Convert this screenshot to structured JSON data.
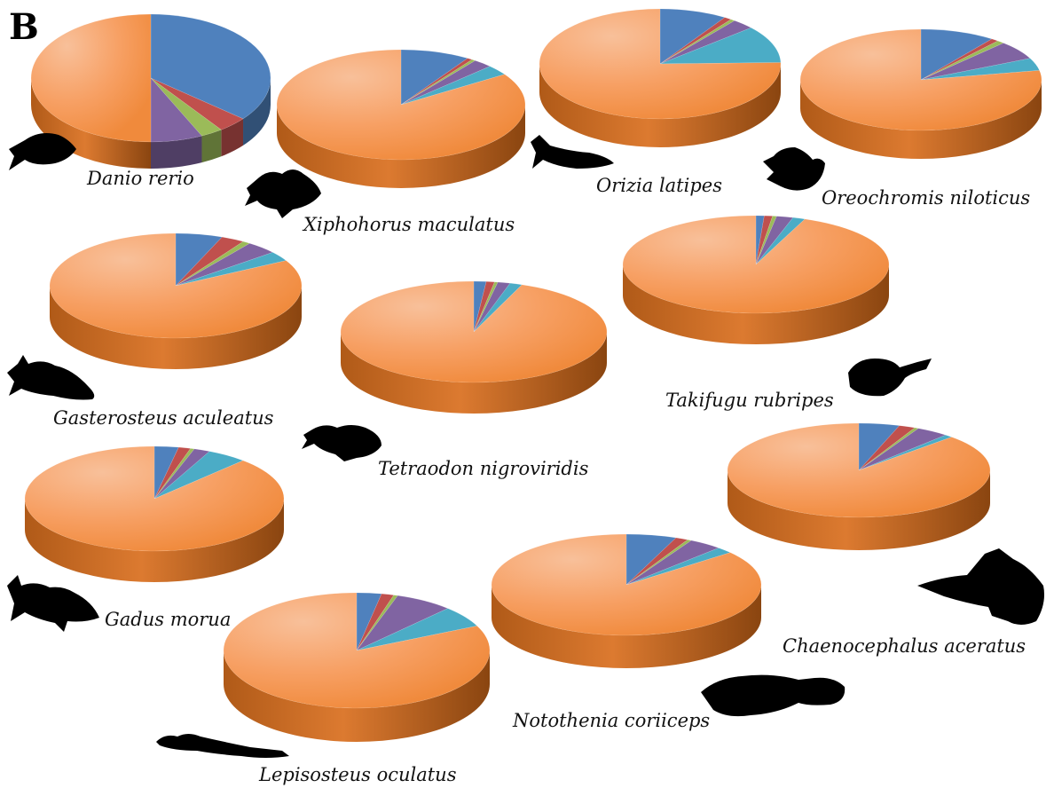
{
  "panel_label": "B",
  "colors": {
    "blue": "#4f81bd",
    "red": "#c0504d",
    "green": "#9bbb59",
    "purple": "#8064a2",
    "cyan": "#4bacc6",
    "orange": "#f79646"
  },
  "chart_data": [
    {
      "type": "pie",
      "species": "Danio rerio",
      "values": [
        {
          "color": "blue",
          "value": 36
        },
        {
          "color": "red",
          "value": 4
        },
        {
          "color": "green",
          "value": 3
        },
        {
          "color": "purple",
          "value": 7
        },
        {
          "color": "cyan",
          "value": 0
        },
        {
          "color": "orange",
          "value": 50
        }
      ]
    },
    {
      "type": "pie",
      "species": "Xiphohorus maculatus",
      "values": [
        {
          "color": "blue",
          "value": 9
        },
        {
          "color": "red",
          "value": 0.7
        },
        {
          "color": "green",
          "value": 0.5
        },
        {
          "color": "purple",
          "value": 2.5
        },
        {
          "color": "cyan",
          "value": 3
        },
        {
          "color": "orange",
          "value": 84.3
        }
      ]
    },
    {
      "type": "pie",
      "species": "Orizia latipes",
      "values": [
        {
          "color": "blue",
          "value": 9
        },
        {
          "color": "red",
          "value": 1
        },
        {
          "color": "green",
          "value": 0.6
        },
        {
          "color": "purple",
          "value": 3
        },
        {
          "color": "cyan",
          "value": 11
        },
        {
          "color": "orange",
          "value": 75.4
        }
      ]
    },
    {
      "type": "pie",
      "species": "Oreochromis niloticus",
      "values": [
        {
          "color": "blue",
          "value": 10
        },
        {
          "color": "red",
          "value": 1
        },
        {
          "color": "green",
          "value": 1
        },
        {
          "color": "purple",
          "value": 6
        },
        {
          "color": "cyan",
          "value": 4
        },
        {
          "color": "orange",
          "value": 78
        }
      ]
    },
    {
      "type": "pie",
      "species": "Gasterosteus aculeatus",
      "values": [
        {
          "color": "blue",
          "value": 6
        },
        {
          "color": "red",
          "value": 3
        },
        {
          "color": "green",
          "value": 1
        },
        {
          "color": "purple",
          "value": 4
        },
        {
          "color": "cyan",
          "value": 3
        },
        {
          "color": "orange",
          "value": 83
        }
      ]
    },
    {
      "type": "pie",
      "species": "Tetraodon nigroviridis",
      "values": [
        {
          "color": "blue",
          "value": 1.5
        },
        {
          "color": "red",
          "value": 1
        },
        {
          "color": "green",
          "value": 0.4
        },
        {
          "color": "purple",
          "value": 1.5
        },
        {
          "color": "cyan",
          "value": 1.5
        },
        {
          "color": "orange",
          "value": 94.1
        }
      ]
    },
    {
      "type": "pie",
      "species": "Takifugu rubripes",
      "values": [
        {
          "color": "blue",
          "value": 1
        },
        {
          "color": "red",
          "value": 1
        },
        {
          "color": "green",
          "value": 0.5
        },
        {
          "color": "purple",
          "value": 2
        },
        {
          "color": "cyan",
          "value": 1.5
        },
        {
          "color": "orange",
          "value": 94
        }
      ]
    },
    {
      "type": "pie",
      "species": "Gadus morua",
      "values": [
        {
          "color": "blue",
          "value": 3
        },
        {
          "color": "red",
          "value": 1.5
        },
        {
          "color": "green",
          "value": 0.5
        },
        {
          "color": "purple",
          "value": 2
        },
        {
          "color": "cyan",
          "value": 5
        },
        {
          "color": "orange",
          "value": 88
        }
      ]
    },
    {
      "type": "pie",
      "species": "Chaenocephalus aceratus",
      "values": [
        {
          "color": "blue",
          "value": 5
        },
        {
          "color": "red",
          "value": 2
        },
        {
          "color": "green",
          "value": 0.5
        },
        {
          "color": "purple",
          "value": 4
        },
        {
          "color": "cyan",
          "value": 1
        },
        {
          "color": "orange",
          "value": 87.5
        }
      ]
    },
    {
      "type": "pie",
      "species": "Notothenia coriiceps",
      "values": [
        {
          "color": "blue",
          "value": 6
        },
        {
          "color": "red",
          "value": 1.5
        },
        {
          "color": "green",
          "value": 0.5
        },
        {
          "color": "purple",
          "value": 4
        },
        {
          "color": "cyan",
          "value": 2
        },
        {
          "color": "orange",
          "value": 86
        }
      ]
    },
    {
      "type": "pie",
      "species": "Lepisosteus oculatus",
      "values": [
        {
          "color": "blue",
          "value": 3
        },
        {
          "color": "red",
          "value": 1.5
        },
        {
          "color": "green",
          "value": 0.5
        },
        {
          "color": "purple",
          "value": 7
        },
        {
          "color": "cyan",
          "value": 6
        },
        {
          "color": "orange",
          "value": 82
        }
      ]
    }
  ]
}
